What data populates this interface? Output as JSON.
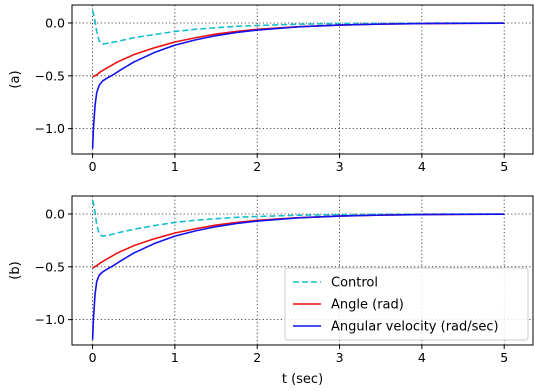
{
  "chart_data": [
    {
      "type": "line",
      "panel_label": "(a)",
      "xlabel": "",
      "xlim": [
        -0.25,
        5.35
      ],
      "ylim": [
        -1.24,
        0.17
      ],
      "xticks": [
        0,
        1,
        2,
        3,
        4,
        5
      ],
      "yticks": [
        0.0,
        -0.5,
        -1.0
      ],
      "xtick_labels": [
        "0",
        "1",
        "2",
        "3",
        "4",
        "5"
      ],
      "ytick_labels": [
        "0.0",
        "−0.5",
        "−1.0"
      ],
      "grid": true,
      "series": [
        {
          "name": "Control",
          "color": "#17becf",
          "dash": "dashed",
          "x": [
            0.0,
            0.01,
            0.03,
            0.05,
            0.08,
            0.12,
            0.2,
            0.3,
            0.5,
            0.75,
            1.0,
            1.25,
            1.5,
            1.75,
            2.0,
            2.5,
            3.0,
            3.5,
            4.0,
            4.5,
            5.0
          ],
          "y": [
            0.12,
            0.09,
            0.02,
            -0.08,
            -0.17,
            -0.2,
            -0.19,
            -0.175,
            -0.14,
            -0.11,
            -0.08,
            -0.06,
            -0.045,
            -0.032,
            -0.024,
            -0.012,
            -0.006,
            -0.003,
            -0.0015,
            -0.0008,
            -0.0004
          ]
        },
        {
          "name": "Angle (rad)",
          "color": "#ee1111",
          "dash": "solid",
          "x": [
            0.0,
            0.05,
            0.1,
            0.2,
            0.3,
            0.5,
            0.75,
            1.0,
            1.25,
            1.5,
            1.75,
            2.0,
            2.5,
            3.0,
            3.5,
            4.0,
            4.5,
            5.0
          ],
          "y": [
            -0.51,
            -0.49,
            -0.46,
            -0.415,
            -0.37,
            -0.3,
            -0.235,
            -0.18,
            -0.14,
            -0.105,
            -0.08,
            -0.06,
            -0.035,
            -0.02,
            -0.011,
            -0.006,
            -0.003,
            -0.002
          ]
        },
        {
          "name": "Angular velocity (rad/sec)",
          "color": "#1111ee",
          "dash": "solid",
          "x": [
            0.0,
            0.01,
            0.03,
            0.05,
            0.08,
            0.12,
            0.18,
            0.25,
            0.35,
            0.5,
            0.75,
            1.0,
            1.25,
            1.5,
            1.75,
            2.0,
            2.5,
            3.0,
            3.5,
            4.0,
            4.5,
            5.0
          ],
          "y": [
            -1.19,
            -1.0,
            -0.78,
            -0.66,
            -0.59,
            -0.55,
            -0.52,
            -0.49,
            -0.44,
            -0.37,
            -0.28,
            -0.21,
            -0.16,
            -0.12,
            -0.09,
            -0.067,
            -0.037,
            -0.02,
            -0.011,
            -0.006,
            -0.003,
            -0.002
          ]
        }
      ]
    },
    {
      "type": "line",
      "panel_label": "(b)",
      "xlabel": "t (sec)",
      "xlim": [
        -0.25,
        5.35
      ],
      "ylim": [
        -1.24,
        0.17
      ],
      "xticks": [
        0,
        1,
        2,
        3,
        4,
        5
      ],
      "yticks": [
        0.0,
        -0.5,
        -1.0
      ],
      "xtick_labels": [
        "0",
        "1",
        "2",
        "3",
        "4",
        "5"
      ],
      "ytick_labels": [
        "0.0",
        "−0.5",
        "−1.0"
      ],
      "grid": true,
      "legend": "lower-right",
      "series": [
        {
          "name": "Control",
          "color": "#17becf",
          "dash": "dashed",
          "x": [
            0.0,
            0.01,
            0.03,
            0.05,
            0.08,
            0.12,
            0.2,
            0.3,
            0.5,
            0.75,
            1.0,
            1.25,
            1.5,
            1.75,
            2.0,
            2.5,
            3.0,
            3.5,
            4.0,
            4.5,
            5.0
          ],
          "y": [
            0.13,
            0.1,
            0.02,
            -0.1,
            -0.19,
            -0.21,
            -0.2,
            -0.18,
            -0.145,
            -0.11,
            -0.08,
            -0.06,
            -0.045,
            -0.032,
            -0.024,
            -0.012,
            -0.006,
            -0.003,
            -0.0015,
            -0.0008,
            -0.0004
          ]
        },
        {
          "name": "Angle (rad)",
          "color": "#ee1111",
          "dash": "solid",
          "x": [
            0.0,
            0.05,
            0.1,
            0.2,
            0.3,
            0.5,
            0.75,
            1.0,
            1.25,
            1.5,
            1.75,
            2.0,
            2.5,
            3.0,
            3.5,
            4.0,
            4.5,
            5.0
          ],
          "y": [
            -0.51,
            -0.49,
            -0.46,
            -0.415,
            -0.37,
            -0.3,
            -0.235,
            -0.18,
            -0.14,
            -0.105,
            -0.08,
            -0.06,
            -0.035,
            -0.02,
            -0.011,
            -0.006,
            -0.003,
            -0.002
          ]
        },
        {
          "name": "Angular velocity (rad/sec)",
          "color": "#1111ee",
          "dash": "solid",
          "x": [
            0.0,
            0.01,
            0.03,
            0.05,
            0.08,
            0.12,
            0.18,
            0.25,
            0.35,
            0.5,
            0.75,
            1.0,
            1.25,
            1.5,
            1.75,
            2.0,
            2.5,
            3.0,
            3.5,
            4.0,
            4.5,
            5.0
          ],
          "y": [
            -1.19,
            -1.0,
            -0.76,
            -0.64,
            -0.58,
            -0.55,
            -0.52,
            -0.49,
            -0.44,
            -0.37,
            -0.28,
            -0.21,
            -0.16,
            -0.12,
            -0.09,
            -0.067,
            -0.037,
            -0.02,
            -0.011,
            -0.006,
            -0.003,
            -0.002
          ]
        }
      ]
    }
  ]
}
